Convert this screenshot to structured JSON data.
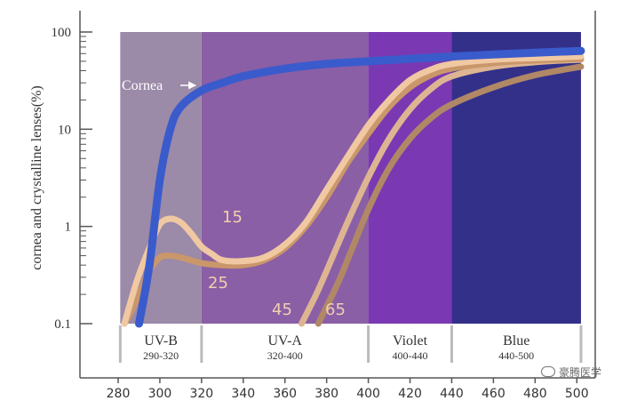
{
  "chart_data": {
    "type": "line",
    "ylabel": "cornea and crystalline lenses(%)",
    "x_ticks": [
      280,
      300,
      320,
      340,
      360,
      380,
      400,
      420,
      440,
      460,
      480,
      500
    ],
    "y_ticks": [
      "0.1",
      "1",
      "10",
      "100"
    ],
    "y_scale": "log",
    "xlim": [
      280,
      500
    ],
    "ylim": [
      0.1,
      100
    ],
    "grid": false,
    "bands": [
      {
        "label": "UV-B",
        "range_label": "290-320",
        "x0": 281,
        "x1": 320,
        "color": "#9b8aa8"
      },
      {
        "label": "UV-A",
        "range_label": "320-400",
        "x0": 320,
        "x1": 400,
        "color": "#8a5fa6"
      },
      {
        "label": "Violet",
        "range_label": "400-440",
        "x0": 400,
        "x1": 440,
        "color": "#7a39b2"
      },
      {
        "label": "Blue",
        "range_label": "440-500",
        "x0": 440,
        "x1": 502,
        "color": "#33308a"
      }
    ],
    "series": [
      {
        "name": "Cornea",
        "color": "#3a5bcc",
        "x": [
          290,
          295,
          300,
          305,
          310,
          320,
          330,
          340,
          360,
          380,
          400,
          440,
          470,
          502
        ],
        "y": [
          0.1,
          0.4,
          3,
          10,
          17,
          25,
          30,
          35,
          42,
          47,
          50,
          56,
          60,
          64
        ]
      },
      {
        "name": "15",
        "color": "#f0c8a2",
        "x": [
          283,
          287,
          290,
          295,
          300,
          305,
          310,
          315,
          320,
          325,
          330,
          340,
          350,
          360,
          370,
          380,
          390,
          400,
          410,
          420,
          430,
          440,
          460,
          480,
          502
        ],
        "y": [
          0.1,
          0.2,
          0.32,
          0.6,
          1.05,
          1.2,
          1.1,
          0.85,
          0.62,
          0.52,
          0.45,
          0.44,
          0.48,
          0.65,
          1.1,
          2.4,
          5.2,
          11,
          20,
          32,
          41,
          47,
          52,
          54,
          56
        ]
      },
      {
        "name": "25",
        "color": "#c9976a",
        "x": [
          283,
          286,
          290,
          295,
          300,
          305,
          310,
          320,
          330,
          340,
          350,
          360,
          370,
          380,
          390,
          400,
          410,
          420,
          430,
          440,
          460,
          480,
          502
        ],
        "y": [
          0.1,
          0.13,
          0.2,
          0.35,
          0.48,
          0.5,
          0.48,
          0.42,
          0.4,
          0.4,
          0.45,
          0.6,
          1.0,
          2.0,
          4.5,
          9,
          17,
          27,
          36,
          42,
          48,
          51,
          53
        ]
      },
      {
        "name": "45",
        "color": "#ddb592",
        "x": [
          368,
          375,
          380,
          390,
          400,
          410,
          420,
          430,
          440,
          460,
          480,
          502
        ],
        "y": [
          0.1,
          0.2,
          0.35,
          1.1,
          3.2,
          8,
          16,
          26,
          35,
          44,
          49,
          52
        ]
      },
      {
        "name": "65",
        "color": "#b08866",
        "x": [
          376,
          385,
          390,
          400,
          410,
          420,
          430,
          440,
          460,
          480,
          502
        ],
        "y": [
          0.1,
          0.25,
          0.45,
          1.5,
          4,
          8,
          13,
          18,
          27,
          36,
          44
        ]
      }
    ]
  },
  "watermark": "豪腾医学"
}
